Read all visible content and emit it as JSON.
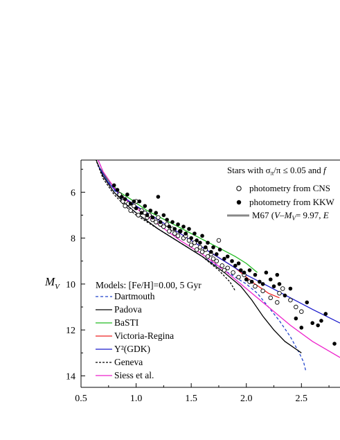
{
  "chart_data": {
    "type": "scatter",
    "ylabel": "M_V",
    "xlim": [
      0.5,
      2.85
    ],
    "ylim": [
      14.5,
      4.6
    ],
    "y_inverted": true,
    "x_ticks": [
      0.5,
      1.0,
      1.5,
      2.0,
      2.5
    ],
    "x_tick_labels": [
      "0.5",
      "1.0",
      "1.5",
      "2.0",
      "2.5"
    ],
    "y_ticks": [
      6,
      8,
      10,
      12,
      14
    ],
    "y_tick_labels": [
      "6",
      "8",
      "10",
      "12",
      "14"
    ],
    "grid": false,
    "observations_title": "Stars with σπ/π ≤ 0.05 and f",
    "observations": [
      {
        "name": "photometry from CNS",
        "marker": "open-circle",
        "points": [
          [
            0.85,
            6.1
          ],
          [
            0.88,
            6.4
          ],
          [
            0.9,
            6.6
          ],
          [
            0.93,
            6.5
          ],
          [
            0.95,
            6.8
          ],
          [
            0.98,
            6.6
          ],
          [
            1.0,
            6.4
          ],
          [
            1.02,
            7.0
          ],
          [
            1.05,
            6.8
          ],
          [
            1.08,
            6.9
          ],
          [
            1.1,
            7.1
          ],
          [
            1.12,
            7.0
          ],
          [
            1.15,
            7.2
          ],
          [
            1.18,
            7.3
          ],
          [
            1.2,
            7.1
          ],
          [
            1.22,
            7.4
          ],
          [
            1.25,
            7.5
          ],
          [
            1.28,
            7.4
          ],
          [
            1.3,
            7.7
          ],
          [
            1.33,
            7.6
          ],
          [
            1.35,
            7.8
          ],
          [
            1.38,
            7.9
          ],
          [
            1.4,
            7.7
          ],
          [
            1.43,
            8.0
          ],
          [
            1.45,
            7.9
          ],
          [
            1.48,
            8.1
          ],
          [
            1.5,
            8.3
          ],
          [
            1.53,
            8.2
          ],
          [
            1.55,
            8.5
          ],
          [
            1.58,
            8.4
          ],
          [
            1.6,
            8.6
          ],
          [
            1.63,
            8.5
          ],
          [
            1.65,
            8.8
          ],
          [
            1.68,
            8.7
          ],
          [
            1.7,
            8.9
          ],
          [
            1.73,
            9.0
          ],
          [
            1.75,
            8.1
          ],
          [
            1.78,
            9.2
          ],
          [
            1.8,
            9.4
          ],
          [
            1.83,
            9.3
          ],
          [
            1.88,
            9.5
          ],
          [
            1.93,
            9.7
          ],
          [
            1.98,
            9.6
          ],
          [
            2.03,
            9.9
          ],
          [
            2.08,
            10.1
          ],
          [
            2.15,
            10.3
          ],
          [
            2.22,
            10.6
          ],
          [
            2.28,
            10.8
          ],
          [
            2.3,
            10.4
          ],
          [
            2.33,
            10.2
          ],
          [
            2.4,
            10.7
          ],
          [
            2.45,
            11.0
          ],
          [
            2.5,
            11.2
          ]
        ]
      },
      {
        "name": "photometry from KKW",
        "marker": "filled-circle",
        "points": [
          [
            0.8,
            5.7
          ],
          [
            0.83,
            5.9
          ],
          [
            0.87,
            6.2
          ],
          [
            0.9,
            6.3
          ],
          [
            0.92,
            6.1
          ],
          [
            0.95,
            6.5
          ],
          [
            0.98,
            6.4
          ],
          [
            1.0,
            6.7
          ],
          [
            1.03,
            6.4
          ],
          [
            1.05,
            6.9
          ],
          [
            1.08,
            6.6
          ],
          [
            1.1,
            7.0
          ],
          [
            1.13,
            6.8
          ],
          [
            1.15,
            7.1
          ],
          [
            1.18,
            6.9
          ],
          [
            1.2,
            6.2
          ],
          [
            1.22,
            7.3
          ],
          [
            1.25,
            7.0
          ],
          [
            1.28,
            7.2
          ],
          [
            1.3,
            7.5
          ],
          [
            1.33,
            7.3
          ],
          [
            1.35,
            7.6
          ],
          [
            1.38,
            7.4
          ],
          [
            1.4,
            7.7
          ],
          [
            1.43,
            7.5
          ],
          [
            1.45,
            7.8
          ],
          [
            1.48,
            7.6
          ],
          [
            1.5,
            8.0
          ],
          [
            1.53,
            7.8
          ],
          [
            1.55,
            8.1
          ],
          [
            1.58,
            8.2
          ],
          [
            1.6,
            7.9
          ],
          [
            1.63,
            8.4
          ],
          [
            1.65,
            8.2
          ],
          [
            1.68,
            8.6
          ],
          [
            1.7,
            8.4
          ],
          [
            1.73,
            8.7
          ],
          [
            1.76,
            8.5
          ],
          [
            1.8,
            8.9
          ],
          [
            1.83,
            8.8
          ],
          [
            1.87,
            9.0
          ],
          [
            1.9,
            9.2
          ],
          [
            1.93,
            9.1
          ],
          [
            1.95,
            9.4
          ],
          [
            1.98,
            9.5
          ],
          [
            2.0,
            9.8
          ],
          [
            2.03,
            9.4
          ],
          [
            2.05,
            9.9
          ],
          [
            2.08,
            9.6
          ],
          [
            2.12,
            9.9
          ],
          [
            2.15,
            10.0
          ],
          [
            2.18,
            9.5
          ],
          [
            2.22,
            9.8
          ],
          [
            2.25,
            10.1
          ],
          [
            2.28,
            9.6
          ],
          [
            2.3,
            10.0
          ],
          [
            2.35,
            10.5
          ],
          [
            2.4,
            10.2
          ],
          [
            2.45,
            11.5
          ],
          [
            2.5,
            11.9
          ],
          [
            2.55,
            10.8
          ],
          [
            2.6,
            11.7
          ],
          [
            2.65,
            11.8
          ],
          [
            2.68,
            11.6
          ],
          [
            2.72,
            11.3
          ],
          [
            2.8,
            12.6
          ]
        ]
      }
    ],
    "m67_label": "M67 (V–M",
    "m67_label_suffix": "= 9.97,  E",
    "models_title": "Models: [Fe/H]=0.00, 5 Gyr",
    "models": [
      {
        "name": "Dartmouth",
        "color": "#2244cc",
        "dash": "dashed",
        "points": [
          [
            0.62,
            4.2
          ],
          [
            0.7,
            5.1
          ],
          [
            0.8,
            5.9
          ],
          [
            0.9,
            6.5
          ],
          [
            1.0,
            6.9
          ],
          [
            1.2,
            7.6
          ],
          [
            1.4,
            8.2
          ],
          [
            1.6,
            8.8
          ],
          [
            1.8,
            9.4
          ],
          [
            2.0,
            10.0
          ],
          [
            2.1,
            10.4
          ],
          [
            2.2,
            11.0
          ],
          [
            2.3,
            11.6
          ],
          [
            2.4,
            12.3
          ],
          [
            2.48,
            13.0
          ],
          [
            2.52,
            13.4
          ],
          [
            2.54,
            13.8
          ]
        ]
      },
      {
        "name": "Padova",
        "color": "#000000",
        "dash": "solid",
        "points": [
          [
            0.62,
            4.4
          ],
          [
            0.7,
            5.3
          ],
          [
            0.8,
            6.0
          ],
          [
            0.9,
            6.5
          ],
          [
            1.0,
            6.9
          ],
          [
            1.2,
            7.6
          ],
          [
            1.4,
            8.2
          ],
          [
            1.6,
            8.8
          ],
          [
            1.8,
            9.5
          ],
          [
            1.95,
            10.1
          ],
          [
            2.05,
            10.7
          ],
          [
            2.15,
            11.4
          ],
          [
            2.25,
            12.0
          ],
          [
            2.35,
            12.5
          ],
          [
            2.5,
            13.0
          ]
        ]
      },
      {
        "name": "BaSTI",
        "color": "#22bb22",
        "dash": "solid",
        "points": [
          [
            0.65,
            4.8
          ],
          [
            0.75,
            5.5
          ],
          [
            0.85,
            6.0
          ],
          [
            0.95,
            6.3
          ],
          [
            1.1,
            6.8
          ],
          [
            1.3,
            7.3
          ],
          [
            1.5,
            7.8
          ],
          [
            1.7,
            8.3
          ],
          [
            1.9,
            8.8
          ],
          [
            2.0,
            9.1
          ],
          [
            2.1,
            9.5
          ]
        ]
      },
      {
        "name": "Victoria-Regina",
        "color": "#ee2222",
        "dash": "solid",
        "points": [
          [
            0.65,
            4.8
          ],
          [
            0.75,
            5.6
          ],
          [
            0.85,
            6.1
          ],
          [
            0.95,
            6.5
          ],
          [
            1.1,
            6.9
          ],
          [
            1.3,
            7.5
          ],
          [
            1.5,
            8.1
          ],
          [
            1.7,
            8.7
          ],
          [
            1.9,
            9.3
          ],
          [
            2.05,
            9.9
          ],
          [
            2.2,
            10.4
          ],
          [
            2.3,
            10.6
          ]
        ]
      },
      {
        "name": "Y²(GDK)",
        "color": "#1a1acc",
        "dash": "solid",
        "points": [
          [
            0.65,
            4.8
          ],
          [
            0.75,
            5.6
          ],
          [
            0.85,
            6.1
          ],
          [
            1.0,
            6.6
          ],
          [
            1.2,
            7.2
          ],
          [
            1.4,
            7.8
          ],
          [
            1.6,
            8.4
          ],
          [
            1.8,
            9.0
          ],
          [
            2.0,
            9.6
          ],
          [
            2.2,
            10.1
          ],
          [
            2.4,
            10.6
          ],
          [
            2.6,
            11.1
          ],
          [
            2.85,
            11.7
          ]
        ]
      },
      {
        "name": "Geneva",
        "color": "#000000",
        "dash": "dotted",
        "points": [
          [
            0.62,
            4.4
          ],
          [
            0.7,
            5.4
          ],
          [
            0.8,
            6.1
          ],
          [
            0.9,
            6.6
          ],
          [
            1.0,
            7.0
          ],
          [
            1.2,
            7.6
          ],
          [
            1.4,
            8.2
          ],
          [
            1.6,
            8.8
          ],
          [
            1.75,
            9.4
          ],
          [
            1.85,
            9.9
          ],
          [
            1.9,
            10.3
          ]
        ]
      },
      {
        "name": "Siess et al.",
        "color": "#ee22cc",
        "dash": "solid",
        "points": [
          [
            0.62,
            4.2
          ],
          [
            0.7,
            5.1
          ],
          [
            0.8,
            5.8
          ],
          [
            0.9,
            6.3
          ],
          [
            1.0,
            6.7
          ],
          [
            1.2,
            7.4
          ],
          [
            1.4,
            8.1
          ],
          [
            1.6,
            8.7
          ],
          [
            1.8,
            9.4
          ],
          [
            2.0,
            10.2
          ],
          [
            2.2,
            11.0
          ],
          [
            2.4,
            11.8
          ],
          [
            2.6,
            12.5
          ],
          [
            2.85,
            13.2
          ]
        ]
      }
    ],
    "m67_color": "#888888"
  }
}
